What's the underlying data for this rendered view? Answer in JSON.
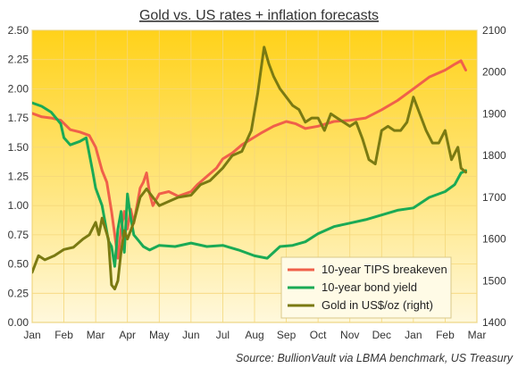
{
  "chart_data": {
    "type": "line",
    "title": "Gold vs. US rates + inflation forecasts",
    "source": "Source: BullionVault via LBMA benchmark, US Treasury",
    "x_ticks": [
      "Jan",
      "Feb",
      "Mar",
      "Apr",
      "May",
      "Jun",
      "Jul",
      "Aug",
      "Sep",
      "Oct",
      "Nov",
      "Dec",
      "Jan",
      "Feb",
      "Mar"
    ],
    "x_range": [
      0,
      14
    ],
    "y_left": {
      "ticks": [
        "0.00",
        "0.25",
        "0.50",
        "0.75",
        "1.00",
        "1.25",
        "1.50",
        "1.75",
        "2.00",
        "2.25",
        "2.50"
      ],
      "range": [
        0,
        2.5
      ]
    },
    "y_right": {
      "ticks": [
        "1400",
        "1500",
        "1600",
        "1700",
        "1800",
        "1900",
        "2000",
        "2100"
      ],
      "range": [
        1400,
        2100
      ]
    },
    "legend_position": "bottom-right",
    "series": [
      {
        "name": "10-year TIPS breakeven",
        "axis": "left",
        "color": "#f0604a",
        "points": [
          [
            0,
            1.79
          ],
          [
            0.3,
            1.76
          ],
          [
            0.6,
            1.75
          ],
          [
            0.9,
            1.73
          ],
          [
            1.2,
            1.65
          ],
          [
            1.5,
            1.63
          ],
          [
            1.8,
            1.6
          ],
          [
            2.0,
            1.5
          ],
          [
            2.2,
            1.3
          ],
          [
            2.35,
            1.2
          ],
          [
            2.5,
            0.95
          ],
          [
            2.6,
            0.75
          ],
          [
            2.7,
            0.55
          ],
          [
            2.8,
            0.8
          ],
          [
            2.9,
            0.95
          ],
          [
            3.0,
            0.8
          ],
          [
            3.1,
            0.97
          ],
          [
            3.2,
            0.85
          ],
          [
            3.3,
            1.0
          ],
          [
            3.4,
            1.15
          ],
          [
            3.5,
            1.2
          ],
          [
            3.6,
            1.28
          ],
          [
            3.7,
            1.1
          ],
          [
            3.8,
            1.0
          ],
          [
            3.9,
            1.05
          ],
          [
            4.0,
            1.1
          ],
          [
            4.3,
            1.12
          ],
          [
            4.6,
            1.08
          ],
          [
            5.0,
            1.12
          ],
          [
            5.2,
            1.18
          ],
          [
            5.5,
            1.25
          ],
          [
            5.8,
            1.32
          ],
          [
            6.0,
            1.4
          ],
          [
            6.3,
            1.45
          ],
          [
            6.6,
            1.52
          ],
          [
            6.9,
            1.57
          ],
          [
            7.2,
            1.62
          ],
          [
            7.6,
            1.68
          ],
          [
            8.0,
            1.72
          ],
          [
            8.3,
            1.7
          ],
          [
            8.6,
            1.66
          ],
          [
            9.0,
            1.68
          ],
          [
            9.5,
            1.72
          ],
          [
            10.0,
            1.73
          ],
          [
            10.5,
            1.75
          ],
          [
            11.0,
            1.82
          ],
          [
            11.5,
            1.9
          ],
          [
            12.0,
            2.0
          ],
          [
            12.5,
            2.1
          ],
          [
            13.0,
            2.16
          ],
          [
            13.3,
            2.21
          ],
          [
            13.5,
            2.24
          ],
          [
            13.65,
            2.16
          ]
        ]
      },
      {
        "name": "10-year bond yield",
        "axis": "left",
        "color": "#1aaa55",
        "points": [
          [
            0,
            1.88
          ],
          [
            0.3,
            1.85
          ],
          [
            0.6,
            1.8
          ],
          [
            0.9,
            1.7
          ],
          [
            1.0,
            1.58
          ],
          [
            1.2,
            1.52
          ],
          [
            1.5,
            1.55
          ],
          [
            1.7,
            1.58
          ],
          [
            1.9,
            1.3
          ],
          [
            2.0,
            1.15
          ],
          [
            2.2,
            1.0
          ],
          [
            2.4,
            0.7
          ],
          [
            2.5,
            0.65
          ],
          [
            2.6,
            0.48
          ],
          [
            2.7,
            0.8
          ],
          [
            2.8,
            0.95
          ],
          [
            2.9,
            0.6
          ],
          [
            3.0,
            1.1
          ],
          [
            3.1,
            0.9
          ],
          [
            3.2,
            0.75
          ],
          [
            3.35,
            0.7
          ],
          [
            3.5,
            0.65
          ],
          [
            3.7,
            0.62
          ],
          [
            4.0,
            0.66
          ],
          [
            4.5,
            0.65
          ],
          [
            5.0,
            0.68
          ],
          [
            5.5,
            0.65
          ],
          [
            6.0,
            0.66
          ],
          [
            6.5,
            0.62
          ],
          [
            7.0,
            0.57
          ],
          [
            7.4,
            0.55
          ],
          [
            7.8,
            0.65
          ],
          [
            8.2,
            0.66
          ],
          [
            8.6,
            0.69
          ],
          [
            9.0,
            0.76
          ],
          [
            9.5,
            0.82
          ],
          [
            10.0,
            0.85
          ],
          [
            10.5,
            0.88
          ],
          [
            11.0,
            0.92
          ],
          [
            11.5,
            0.96
          ],
          [
            12.0,
            0.98
          ],
          [
            12.5,
            1.07
          ],
          [
            13.0,
            1.12
          ],
          [
            13.3,
            1.18
          ],
          [
            13.5,
            1.28
          ],
          [
            13.65,
            1.3
          ]
        ]
      },
      {
        "name": "Gold in US$/oz (right)",
        "axis": "right",
        "color": "#7a7a12",
        "points": [
          [
            0,
            1520
          ],
          [
            0.2,
            1560
          ],
          [
            0.4,
            1550
          ],
          [
            0.7,
            1560
          ],
          [
            1.0,
            1575
          ],
          [
            1.3,
            1580
          ],
          [
            1.6,
            1600
          ],
          [
            1.8,
            1610
          ],
          [
            2.0,
            1640
          ],
          [
            2.1,
            1610
          ],
          [
            2.2,
            1650
          ],
          [
            2.4,
            1600
          ],
          [
            2.5,
            1490
          ],
          [
            2.6,
            1480
          ],
          [
            2.7,
            1500
          ],
          [
            2.8,
            1570
          ],
          [
            2.9,
            1620
          ],
          [
            3.0,
            1600
          ],
          [
            3.2,
            1640
          ],
          [
            3.4,
            1700
          ],
          [
            3.6,
            1720
          ],
          [
            3.8,
            1700
          ],
          [
            4.0,
            1680
          ],
          [
            4.3,
            1690
          ],
          [
            4.6,
            1700
          ],
          [
            5.0,
            1705
          ],
          [
            5.3,
            1730
          ],
          [
            5.6,
            1740
          ],
          [
            6.0,
            1770
          ],
          [
            6.3,
            1800
          ],
          [
            6.6,
            1810
          ],
          [
            6.9,
            1860
          ],
          [
            7.1,
            1950
          ],
          [
            7.3,
            2060
          ],
          [
            7.45,
            2020
          ],
          [
            7.6,
            1990
          ],
          [
            7.8,
            1960
          ],
          [
            8.0,
            1940
          ],
          [
            8.2,
            1920
          ],
          [
            8.4,
            1910
          ],
          [
            8.6,
            1880
          ],
          [
            8.8,
            1890
          ],
          [
            9.0,
            1890
          ],
          [
            9.2,
            1860
          ],
          [
            9.4,
            1900
          ],
          [
            9.6,
            1890
          ],
          [
            9.8,
            1880
          ],
          [
            10.0,
            1870
          ],
          [
            10.2,
            1880
          ],
          [
            10.4,
            1840
          ],
          [
            10.6,
            1790
          ],
          [
            10.8,
            1780
          ],
          [
            11.0,
            1860
          ],
          [
            11.2,
            1870
          ],
          [
            11.4,
            1860
          ],
          [
            11.6,
            1860
          ],
          [
            11.8,
            1880
          ],
          [
            12.0,
            1940
          ],
          [
            12.2,
            1900
          ],
          [
            12.4,
            1860
          ],
          [
            12.6,
            1830
          ],
          [
            12.8,
            1830
          ],
          [
            13.0,
            1860
          ],
          [
            13.2,
            1790
          ],
          [
            13.4,
            1820
          ],
          [
            13.5,
            1770
          ],
          [
            13.65,
            1760
          ]
        ]
      }
    ]
  }
}
